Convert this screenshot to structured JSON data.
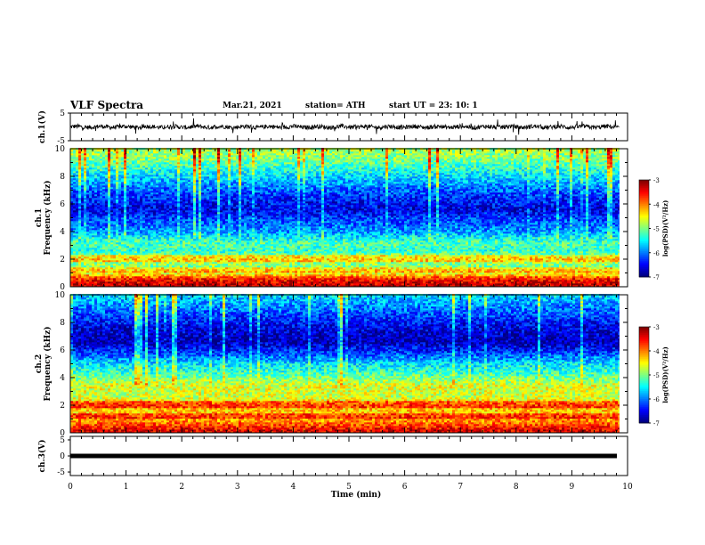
{
  "header": {
    "title": "VLF Spectra",
    "date": "Mar.21, 2021",
    "station": "station= ATH",
    "start": "start  UT  =   23: 10: 1"
  },
  "chart_data": [
    {
      "type": "line",
      "panel": "ch1-waveform",
      "ylabel": "ch.1(V)",
      "ylim": [
        -5,
        5
      ],
      "y_ticks": [
        "5",
        "-5"
      ],
      "xlim": [
        0,
        10
      ],
      "baseline": 0,
      "noise_amplitude": 1
    },
    {
      "type": "heatmap",
      "panel": "ch1-spectrogram",
      "ylabel": "ch.1\nFrequency  (kHz)",
      "ylabel_line1": "ch.1",
      "ylabel_line2": "Frequency  (kHz)",
      "ylim": [
        0,
        10
      ],
      "y_ticks": [
        "0",
        "2",
        "4",
        "6",
        "8",
        "10"
      ],
      "xlim": [
        0,
        9.85
      ],
      "colorbar": {
        "label": "log(PSD)(V²/Hz)",
        "range": [
          -7,
          -3
        ],
        "ticks": [
          "-3",
          "-4",
          "-5",
          "-6",
          "-7"
        ]
      },
      "band_profile": [
        {
          "f": 0.2,
          "v": -3.3
        },
        {
          "f": 0.6,
          "v": -3.6
        },
        {
          "f": 1.0,
          "v": -4.6
        },
        {
          "f": 1.4,
          "v": -5.0
        },
        {
          "f": 2.0,
          "v": -4.8
        },
        {
          "f": 2.6,
          "v": -5.3
        },
        {
          "f": 3.2,
          "v": -5.2
        },
        {
          "f": 4.0,
          "v": -5.9
        },
        {
          "f": 4.8,
          "v": -6.2
        },
        {
          "f": 5.6,
          "v": -6.6
        },
        {
          "f": 6.6,
          "v": -6.3
        },
        {
          "f": 8.0,
          "v": -5.6
        },
        {
          "f": 9.2,
          "v": -5.0
        },
        {
          "f": 10.0,
          "v": -4.8
        }
      ]
    },
    {
      "type": "heatmap",
      "panel": "ch2-spectrogram",
      "ylabel": "ch.2\nFrequency  (kHz)",
      "ylabel_line1": "ch.2",
      "ylabel_line2": "Frequency  (kHz)",
      "ylim": [
        0,
        10
      ],
      "y_ticks": [
        "0",
        "2",
        "4",
        "6",
        "8",
        "10"
      ],
      "xlim": [
        0,
        9.85
      ],
      "colorbar": {
        "label": "log(PSD)(V²/Hz)",
        "range": [
          -7,
          -3
        ],
        "ticks": [
          "-3",
          "-4",
          "-5",
          "-6",
          "-7"
        ]
      },
      "band_profile": [
        {
          "f": 0.2,
          "v": -3.4
        },
        {
          "f": 0.8,
          "v": -4.0
        },
        {
          "f": 1.4,
          "v": -4.3
        },
        {
          "f": 2.0,
          "v": -4.2
        },
        {
          "f": 2.6,
          "v": -4.7
        },
        {
          "f": 3.4,
          "v": -4.6
        },
        {
          "f": 4.2,
          "v": -5.2
        },
        {
          "f": 5.0,
          "v": -5.6
        },
        {
          "f": 5.8,
          "v": -6.3
        },
        {
          "f": 6.6,
          "v": -6.8
        },
        {
          "f": 7.6,
          "v": -6.6
        },
        {
          "f": 8.8,
          "v": -6.1
        },
        {
          "f": 10.0,
          "v": -5.6
        }
      ]
    },
    {
      "type": "line",
      "panel": "ch3-waveform",
      "ylabel": "ch.3(V)",
      "ylim": [
        -5,
        5
      ],
      "y_ticks": [
        "5",
        "0",
        "-5"
      ],
      "xlim": [
        0,
        10
      ],
      "xlabel": "Time  (min)",
      "x_ticks": [
        "0",
        "1",
        "2",
        "3",
        "4",
        "5",
        "6",
        "7",
        "8",
        "9",
        "10"
      ],
      "baseline": 0,
      "noise_amplitude": 0
    }
  ]
}
